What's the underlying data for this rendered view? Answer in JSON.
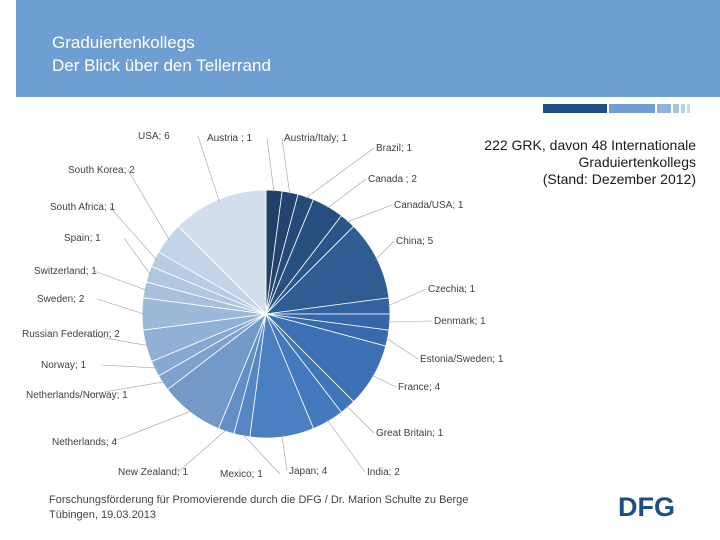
{
  "header": {
    "title_line1": "Graduiertenkollegs",
    "title_line2": "Der Blick über den Tellerrand",
    "color": "#6e9fd2"
  },
  "info": {
    "line1": "222 GRK, davon 48 Internationale",
    "line2": "Graduiertenkollegs",
    "line3": "(Stand: Dezember 2012)"
  },
  "footer": {
    "line1": "Forschungsförderung für Promovierende durch die DFG / Dr. Marion Schulte zu Berge",
    "line2": "Tübingen, 19.03.2013"
  },
  "logo": {
    "text": "DFG",
    "color": "#1f4f82"
  },
  "chart_data": {
    "type": "pie",
    "title": "",
    "start": "12 o'clock, clockwise",
    "slices": [
      {
        "label": "Austria ; 1",
        "value": 1,
        "color": "#1f3f66"
      },
      {
        "label": "Austria/Italy; 1",
        "value": 1,
        "color": "#22456f"
      },
      {
        "label": "Brazil; 1",
        "value": 1,
        "color": "#254a77"
      },
      {
        "label": "Canada ; 2",
        "value": 2,
        "color": "#28507f"
      },
      {
        "label": "Canada/USA; 1",
        "value": 1,
        "color": "#2b5586"
      },
      {
        "label": "China; 5",
        "value": 5,
        "color": "#2f5d93"
      },
      {
        "label": "Czechia; 1",
        "value": 1,
        "color": "#3362a0"
      },
      {
        "label": "Denmark; 1",
        "value": 1,
        "color": "#3567a8"
      },
      {
        "label": "Estonia/Sweden; 1",
        "value": 1,
        "color": "#376bae"
      },
      {
        "label": "France; 4",
        "value": 4,
        "color": "#3b70b5"
      },
      {
        "label": "Great Britain; 1",
        "value": 1,
        "color": "#4075b9"
      },
      {
        "label": "India; 2",
        "value": 2,
        "color": "#4479bd"
      },
      {
        "label": "Japan; 4",
        "value": 4,
        "color": "#4a7fc1"
      },
      {
        "label": "Mexico; 1",
        "value": 1,
        "color": "#5686c3"
      },
      {
        "label": "New Zealand; 1",
        "value": 1,
        "color": "#638fc6"
      },
      {
        "label": "Netherlands; 4",
        "value": 4,
        "color": "#7399c9"
      },
      {
        "label": "Netherlands/Norway; 1",
        "value": 1,
        "color": "#7fa2cd"
      },
      {
        "label": "Norway; 1",
        "value": 1,
        "color": "#87a8d1"
      },
      {
        "label": "Russian Federation; 2",
        "value": 2,
        "color": "#91b0d5"
      },
      {
        "label": "Sweden; 2",
        "value": 2,
        "color": "#9db9da"
      },
      {
        "label": "Switzerland; 1",
        "value": 1,
        "color": "#a7c0de"
      },
      {
        "label": "Spain; 1",
        "value": 1,
        "color": "#b0c7e2"
      },
      {
        "label": "South Africa; 1",
        "value": 1,
        "color": "#b8cde4"
      },
      {
        "label": "South Korea; 2",
        "value": 2,
        "color": "#c3d3e8"
      },
      {
        "label": "USA; 6",
        "value": 6,
        "color": "#d3deed"
      }
    ]
  }
}
